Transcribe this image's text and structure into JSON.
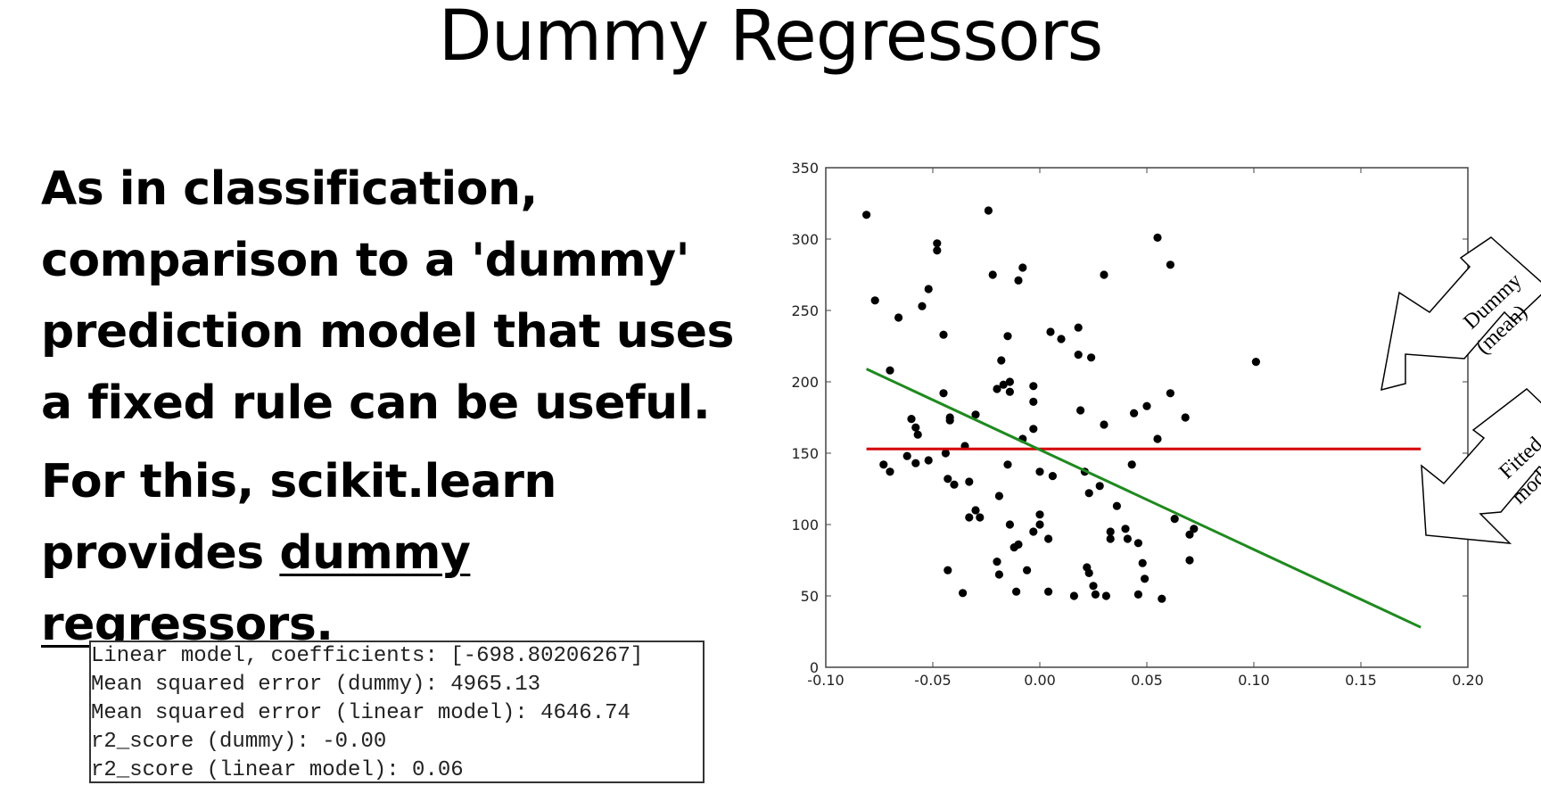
{
  "slide": {
    "title": "Dummy Regressors",
    "paragraph1": [
      "As in classification,",
      "comparison to a 'dummy'",
      "prediction model that uses",
      "a fixed rule can be useful."
    ],
    "paragraph2_lines": [
      "For this, scikit.learn",
      "provides "
    ],
    "paragraph2_link_1": "dummy",
    "paragraph2_link_2": "regressors",
    "paragraph2_suffix": "."
  },
  "console": {
    "lines": [
      "Linear model, coefficients: [-698.80206267]",
      "Mean squared error (dummy): 4965.13",
      "Mean squared error (linear model): 4646.74",
      "r2_score (dummy): -0.00",
      "r2_score (linear model): 0.06"
    ]
  },
  "annotations": {
    "dummy": [
      "Dummy",
      "(mean)"
    ],
    "fitted": [
      "Fitted",
      "model"
    ]
  },
  "colors": {
    "points": "#000000",
    "dummy_line": "#d40000",
    "fitted_line": "#1f8a1f",
    "axis": "#444444"
  },
  "chart_data": {
    "type": "scatter",
    "xlim": [
      -0.1,
      0.2
    ],
    "ylim": [
      0,
      350
    ],
    "xticks": [
      "-0.10",
      "-0.05",
      "0.00",
      "0.05",
      "0.10",
      "0.15",
      "0.20"
    ],
    "yticks": [
      "0",
      "50",
      "100",
      "150",
      "200",
      "250",
      "300",
      "350"
    ],
    "xtick_values": [
      -0.1,
      -0.05,
      0.0,
      0.05,
      0.1,
      0.15,
      0.2
    ],
    "ytick_values": [
      0,
      50,
      100,
      150,
      200,
      250,
      300,
      350
    ],
    "grid": false,
    "points": [
      [
        -0.081,
        317
      ],
      [
        -0.077,
        257
      ],
      [
        -0.066,
        245
      ],
      [
        -0.07,
        208
      ],
      [
        -0.073,
        142
      ],
      [
        -0.07,
        137
      ],
      [
        -0.06,
        174
      ],
      [
        -0.058,
        168
      ],
      [
        -0.057,
        163
      ],
      [
        -0.062,
        148
      ],
      [
        -0.058,
        143
      ],
      [
        -0.052,
        145
      ],
      [
        -0.055,
        253
      ],
      [
        -0.052,
        265
      ],
      [
        -0.048,
        297
      ],
      [
        -0.048,
        292
      ],
      [
        -0.045,
        233
      ],
      [
        -0.045,
        192
      ],
      [
        -0.044,
        150
      ],
      [
        -0.042,
        175
      ],
      [
        -0.043,
        132
      ],
      [
        -0.04,
        128
      ],
      [
        -0.042,
        173
      ],
      [
        -0.035,
        155
      ],
      [
        -0.033,
        130
      ],
      [
        -0.03,
        177
      ],
      [
        -0.033,
        105
      ],
      [
        -0.03,
        110
      ],
      [
        -0.028,
        105
      ],
      [
        -0.024,
        320
      ],
      [
        -0.022,
        275
      ],
      [
        -0.02,
        195
      ],
      [
        -0.018,
        215
      ],
      [
        -0.017,
        198
      ],
      [
        -0.014,
        200
      ],
      [
        -0.014,
        193
      ],
      [
        -0.015,
        232
      ],
      [
        -0.019,
        120
      ],
      [
        -0.02,
        74
      ],
      [
        -0.019,
        65
      ],
      [
        -0.015,
        142
      ],
      [
        -0.014,
        100
      ],
      [
        -0.012,
        84
      ],
      [
        -0.01,
        86
      ],
      [
        -0.008,
        280
      ],
      [
        -0.01,
        271
      ],
      [
        -0.008,
        160
      ],
      [
        -0.006,
        68
      ],
      [
        -0.011,
        53
      ],
      [
        -0.043,
        68
      ],
      [
        -0.036,
        52
      ],
      [
        -0.003,
        197
      ],
      [
        -0.003,
        186
      ],
      [
        -0.003,
        167
      ],
      [
        -0.003,
        95
      ],
      [
        0.0,
        107
      ],
      [
        0.0,
        100
      ],
      [
        0.0,
        137
      ],
      [
        0.004,
        90
      ],
      [
        0.004,
        53
      ],
      [
        0.006,
        134
      ],
      [
        0.005,
        235
      ],
      [
        0.01,
        230
      ],
      [
        0.016,
        50
      ],
      [
        0.018,
        238
      ],
      [
        0.018,
        219
      ],
      [
        0.019,
        180
      ],
      [
        0.021,
        137
      ],
      [
        0.023,
        122
      ],
      [
        0.022,
        70
      ],
      [
        0.023,
        66
      ],
      [
        0.024,
        217
      ],
      [
        0.025,
        57
      ],
      [
        0.026,
        51
      ],
      [
        0.028,
        127
      ],
      [
        0.03,
        275
      ],
      [
        0.03,
        170
      ],
      [
        0.031,
        50
      ],
      [
        0.033,
        95
      ],
      [
        0.033,
        90
      ],
      [
        0.036,
        113
      ],
      [
        0.04,
        97
      ],
      [
        0.041,
        90
      ],
      [
        0.043,
        142
      ],
      [
        0.044,
        178
      ],
      [
        0.046,
        87
      ],
      [
        0.048,
        73
      ],
      [
        0.049,
        62
      ],
      [
        0.05,
        183
      ],
      [
        0.046,
        51
      ],
      [
        0.055,
        301
      ],
      [
        0.055,
        160
      ],
      [
        0.057,
        48
      ],
      [
        0.061,
        282
      ],
      [
        0.061,
        192
      ],
      [
        0.063,
        104
      ],
      [
        0.068,
        175
      ],
      [
        0.07,
        93
      ],
      [
        0.07,
        75
      ],
      [
        0.072,
        97
      ],
      [
        0.101,
        214
      ]
    ],
    "dummy_line": {
      "x": [
        -0.081,
        0.178
      ],
      "y": [
        153,
        153
      ]
    },
    "fitted_line": {
      "x": [
        -0.081,
        0.178
      ],
      "y": [
        209,
        28
      ]
    }
  }
}
